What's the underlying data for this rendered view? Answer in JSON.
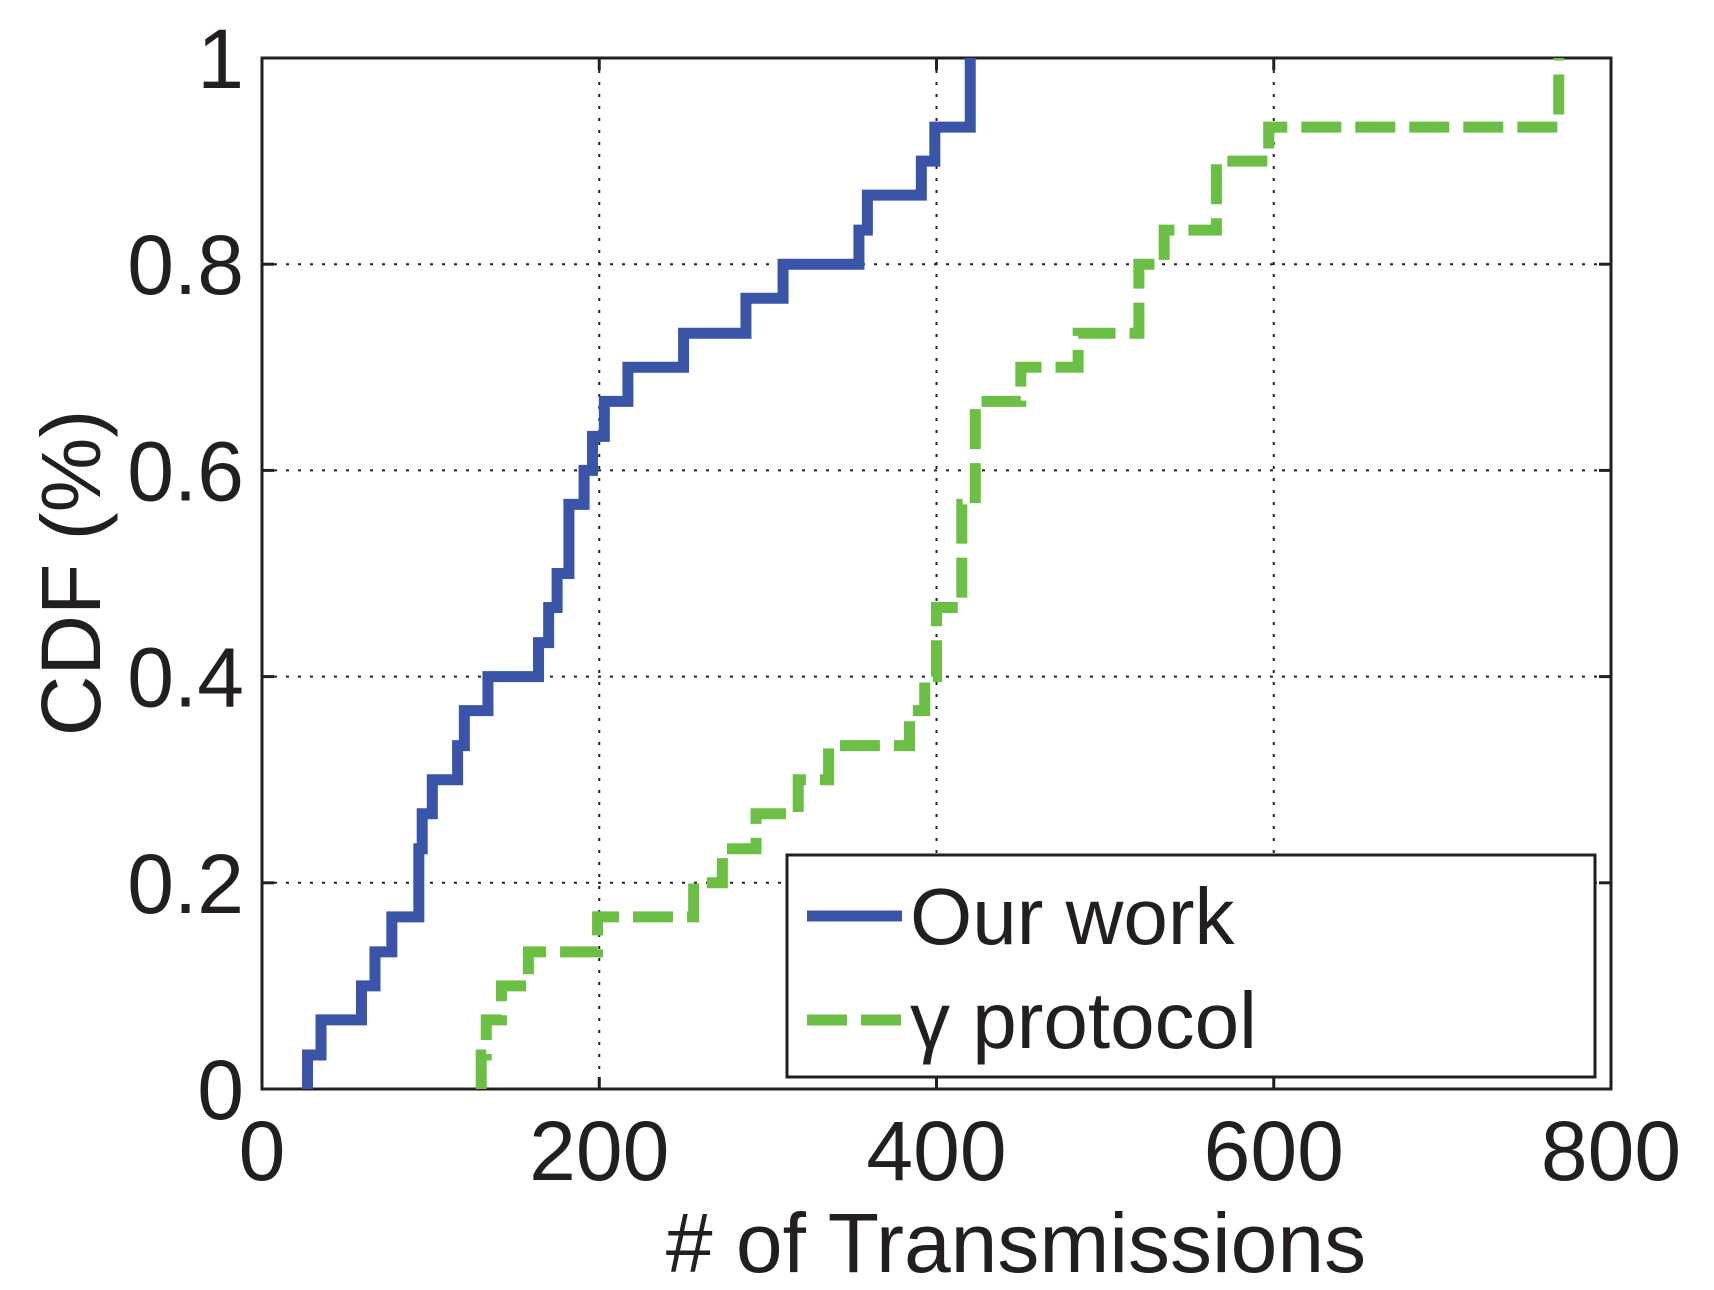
{
  "chart_data": {
    "type": "line",
    "title": "",
    "xlabel": "# of Transmissions",
    "ylabel": "CDF (%)",
    "xlim": [
      0,
      800
    ],
    "ylim": [
      0,
      1
    ],
    "x_ticks": [
      "0",
      "200",
      "400",
      "600",
      "800"
    ],
    "y_ticks": [
      "0",
      "0.2",
      "0.4",
      "0.6",
      "0.8",
      "1"
    ],
    "grid": true,
    "legend_position": "bottom-right",
    "series": [
      {
        "name": "Our work",
        "color": "#3a54a8",
        "style": "solid",
        "x": [
          27,
          35,
          59,
          67,
          77,
          93,
          95,
          101,
          116,
          120,
          134,
          164,
          170,
          175,
          182,
          191,
          196,
          203,
          217,
          250,
          287,
          309,
          354,
          359,
          391,
          399,
          420
        ],
        "y": [
          0.033,
          0.067,
          0.1,
          0.133,
          0.167,
          0.233,
          0.267,
          0.3,
          0.333,
          0.367,
          0.4,
          0.433,
          0.467,
          0.5,
          0.567,
          0.6,
          0.633,
          0.667,
          0.7,
          0.733,
          0.767,
          0.8,
          0.833,
          0.867,
          0.9,
          0.933,
          0.967
        ]
      },
      {
        "name": "γ protocol",
        "color": "#6cbf45",
        "style": "dashed",
        "x": [
          130,
          133,
          142,
          158,
          199,
          203,
          256,
          273,
          293,
          318,
          336,
          384,
          393,
          400,
          415,
          423,
          450,
          484,
          520,
          535,
          566,
          597,
          769
        ],
        "y": [
          0.033,
          0.067,
          0.1,
          0.133,
          0.167,
          0.167,
          0.2,
          0.233,
          0.267,
          0.3,
          0.333,
          0.367,
          0.4,
          0.467,
          0.567,
          0.667,
          0.7,
          0.733,
          0.8,
          0.833,
          0.9,
          0.933,
          1.0
        ]
      }
    ]
  }
}
